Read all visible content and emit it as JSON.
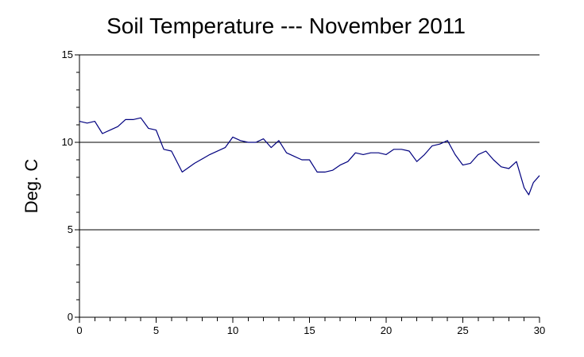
{
  "chart_data": {
    "type": "line",
    "title": "Soil Temperature --- November 2011",
    "xlabel": "",
    "ylabel": "Deg. C",
    "xlim": [
      0,
      30
    ],
    "ylim": [
      0,
      15
    ],
    "x_ticks": [
      "0",
      "5",
      "10",
      "15",
      "20",
      "25",
      "30"
    ],
    "y_ticks": [
      "0",
      "5",
      "10",
      "15"
    ],
    "grid": "horizontal major lines at 5, 10, 15",
    "legend": "none",
    "line_color": "#00007f",
    "series": [
      {
        "x": [
          0,
          0.5,
          1,
          1.5,
          2,
          2.5,
          3,
          3.5,
          4,
          4.5,
          5,
          5.5,
          6,
          6.7,
          7.5,
          8.5,
          9.5,
          10,
          10.5,
          11,
          11.5,
          12,
          12.5,
          13,
          13.5,
          14,
          14.5,
          15,
          15.5,
          16,
          16.5,
          17,
          17.5,
          18,
          18.5,
          19,
          19.5,
          20,
          20.5,
          21,
          21.5,
          22,
          22.5,
          23,
          23.5,
          24,
          24.5,
          25,
          25.5,
          26,
          26.5,
          27,
          27.5,
          28,
          28.5,
          29,
          29.3,
          29.6,
          30
        ],
        "y": [
          11.2,
          11.1,
          11.2,
          10.5,
          10.7,
          10.9,
          11.3,
          11.3,
          11.4,
          10.8,
          10.7,
          9.6,
          9.5,
          8.3,
          8.8,
          9.3,
          9.7,
          10.3,
          10.1,
          10.0,
          10.0,
          10.2,
          9.7,
          10.1,
          9.4,
          9.2,
          9.0,
          9.0,
          8.3,
          8.3,
          8.4,
          8.7,
          8.9,
          9.4,
          9.3,
          9.4,
          9.4,
          9.3,
          9.6,
          9.6,
          9.5,
          8.9,
          9.3,
          9.8,
          9.9,
          10.1,
          9.3,
          8.7,
          8.8,
          9.3,
          9.5,
          9.0,
          8.6,
          8.5,
          8.9,
          7.4,
          7.0,
          7.7,
          8.1
        ]
      }
    ]
  }
}
